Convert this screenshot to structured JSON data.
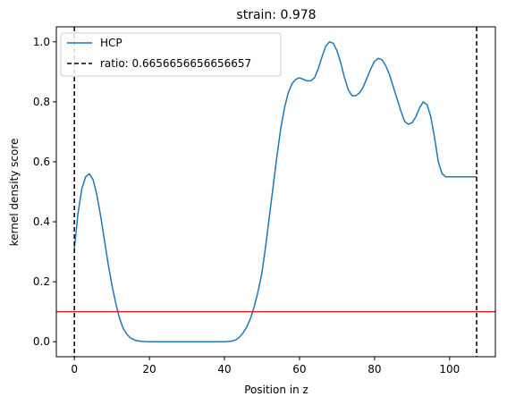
{
  "chart_data": {
    "type": "line",
    "title": "strain: 0.978",
    "xlabel": "Position in z",
    "ylabel": "kernel density score",
    "xlim": [
      -4.8,
      112.2
    ],
    "ylim": [
      -0.05,
      1.05
    ],
    "xticks": [
      0,
      20,
      40,
      60,
      80,
      100
    ],
    "yticks": [
      0.0,
      0.2,
      0.4,
      0.6,
      0.8,
      1.0
    ],
    "ytick_labels": [
      "0.0",
      "0.2",
      "0.4",
      "0.6",
      "0.8",
      "1.0"
    ],
    "grid": false,
    "legend_position": "top-left",
    "series": [
      {
        "name": "HCP",
        "color": "#1f77b4",
        "x": [
          0,
          1,
          2,
          3,
          4,
          5,
          6,
          7,
          8,
          9,
          10,
          11,
          12,
          13,
          14,
          15,
          16,
          17,
          18,
          20,
          25,
          30,
          35,
          40,
          42,
          43,
          44,
          45,
          46,
          47,
          48,
          49,
          50,
          51,
          52,
          53,
          54,
          55,
          56,
          57,
          58,
          59,
          60,
          61,
          62,
          63,
          64,
          65,
          66,
          67,
          68,
          69,
          70,
          71,
          72,
          73,
          74,
          75,
          76,
          77,
          78,
          79,
          80,
          81,
          82,
          83,
          84,
          85,
          86,
          87,
          88,
          89,
          90,
          91,
          92,
          93,
          94,
          95,
          96,
          97,
          98,
          99,
          100,
          101,
          102,
          103,
          104,
          105,
          106,
          107.2
        ],
        "values": [
          0.31,
          0.43,
          0.51,
          0.55,
          0.56,
          0.54,
          0.49,
          0.42,
          0.34,
          0.26,
          0.19,
          0.13,
          0.08,
          0.045,
          0.025,
          0.012,
          0.006,
          0.003,
          0.001,
          0.0,
          0.0,
          0.0,
          0.0,
          0.0,
          0.002,
          0.006,
          0.015,
          0.03,
          0.05,
          0.08,
          0.12,
          0.17,
          0.23,
          0.32,
          0.42,
          0.52,
          0.62,
          0.71,
          0.78,
          0.83,
          0.86,
          0.875,
          0.88,
          0.875,
          0.87,
          0.87,
          0.88,
          0.91,
          0.95,
          0.985,
          1.0,
          0.995,
          0.97,
          0.93,
          0.88,
          0.84,
          0.82,
          0.82,
          0.83,
          0.85,
          0.88,
          0.91,
          0.935,
          0.945,
          0.94,
          0.92,
          0.89,
          0.85,
          0.81,
          0.77,
          0.735,
          0.725,
          0.73,
          0.75,
          0.78,
          0.8,
          0.79,
          0.75,
          0.68,
          0.6,
          0.56,
          0.55,
          0.55,
          0.55,
          0.55,
          0.55,
          0.55,
          0.55,
          0.55,
          0.55
        ]
      }
    ],
    "vlines": [
      {
        "x": 0,
        "color": "#000000",
        "style": "dashed"
      },
      {
        "x": 107.2,
        "color": "#000000",
        "style": "dashed"
      }
    ],
    "vline_legend_label": "ratio: 0.6656656656656657",
    "hline": {
      "y": 0.1,
      "color": "#d62728"
    }
  }
}
